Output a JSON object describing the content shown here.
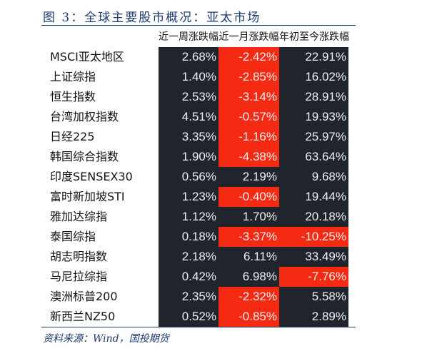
{
  "title": "图 3：全球主要股市概况：亚太市场",
  "columns": [
    "近一周涨跌幅",
    "近一月涨跌幅",
    "年初至今涨跌幅"
  ],
  "rows": [
    {
      "name": "MSCI亚太地区",
      "values": [
        "2.68%",
        "-2.42%",
        "22.91%"
      ]
    },
    {
      "name": "上证综指",
      "values": [
        "1.40%",
        "-2.85%",
        "16.02%"
      ]
    },
    {
      "name": "恒生指数",
      "values": [
        "2.53%",
        "-3.14%",
        "28.91%"
      ]
    },
    {
      "name": "台湾加权指数",
      "values": [
        "4.51%",
        "-0.57%",
        "19.93%"
      ]
    },
    {
      "name": "日经225",
      "values": [
        "3.35%",
        "-1.16%",
        "25.97%"
      ]
    },
    {
      "name": "韩国综合指数",
      "values": [
        "1.90%",
        "-4.38%",
        "63.64%"
      ]
    },
    {
      "name": "印度SENSEX30",
      "values": [
        "0.56%",
        "2.19%",
        "9.68%"
      ]
    },
    {
      "name": "富时新加坡STI",
      "values": [
        "1.23%",
        "-0.40%",
        "19.44%"
      ]
    },
    {
      "name": "雅加达综指",
      "values": [
        "1.12%",
        "1.70%",
        "20.18%"
      ]
    },
    {
      "name": "泰国综指",
      "values": [
        "0.18%",
        "-3.37%",
        "-10.25%"
      ]
    },
    {
      "name": "胡志明指数",
      "values": [
        "2.18%",
        "6.11%",
        "33.49%"
      ]
    },
    {
      "name": "马尼拉综指",
      "values": [
        "0.42%",
        "6.98%",
        "-7.76%"
      ]
    },
    {
      "name": "澳洲标普200",
      "values": [
        "2.35%",
        "-2.32%",
        "5.58%"
      ]
    },
    {
      "name": "新西兰NZ50",
      "values": [
        "0.52%",
        "-0.85%",
        "2.89%"
      ]
    }
  ],
  "colors": {
    "negative": "#f52a12",
    "cell_bg": "#20242d",
    "accent": "#1f3a6e"
  },
  "source": "资料来源：Wind，国投期货"
}
